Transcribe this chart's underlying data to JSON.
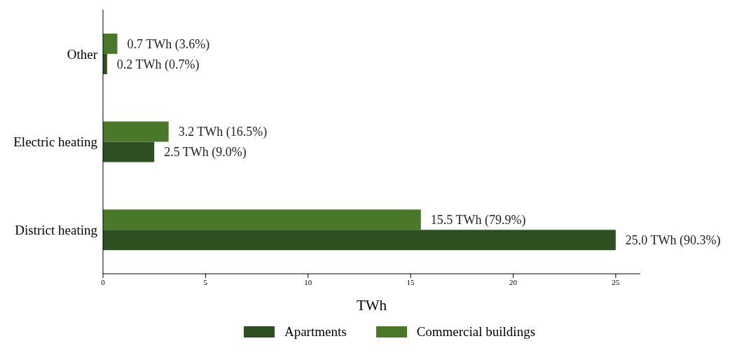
{
  "chart_data": {
    "type": "bar",
    "orientation": "horizontal",
    "categories": [
      "Other",
      "Electric heating",
      "District heating"
    ],
    "series": [
      {
        "name": "Apartments",
        "color": "#2e4f1f",
        "values": [
          0.2,
          2.5,
          25.0
        ],
        "value_labels": [
          "0.2 TWh (0.7%)",
          "2.5 TWh (9.0%)",
          "25.0 TWh (90.3%)"
        ]
      },
      {
        "name": "Commercial buildings",
        "color": "#4a7729",
        "values": [
          0.7,
          3.2,
          15.5
        ],
        "value_labels": [
          "0.7 TWh (3.6%)",
          "3.2 TWh (16.5%)",
          "15.5 TWh (79.9%)"
        ]
      }
    ],
    "xlabel": "TWh",
    "xlim": [
      0,
      26.2
    ],
    "xticks": [
      0,
      5,
      10,
      15,
      20,
      25
    ],
    "grid": false,
    "legend": "bottom"
  }
}
